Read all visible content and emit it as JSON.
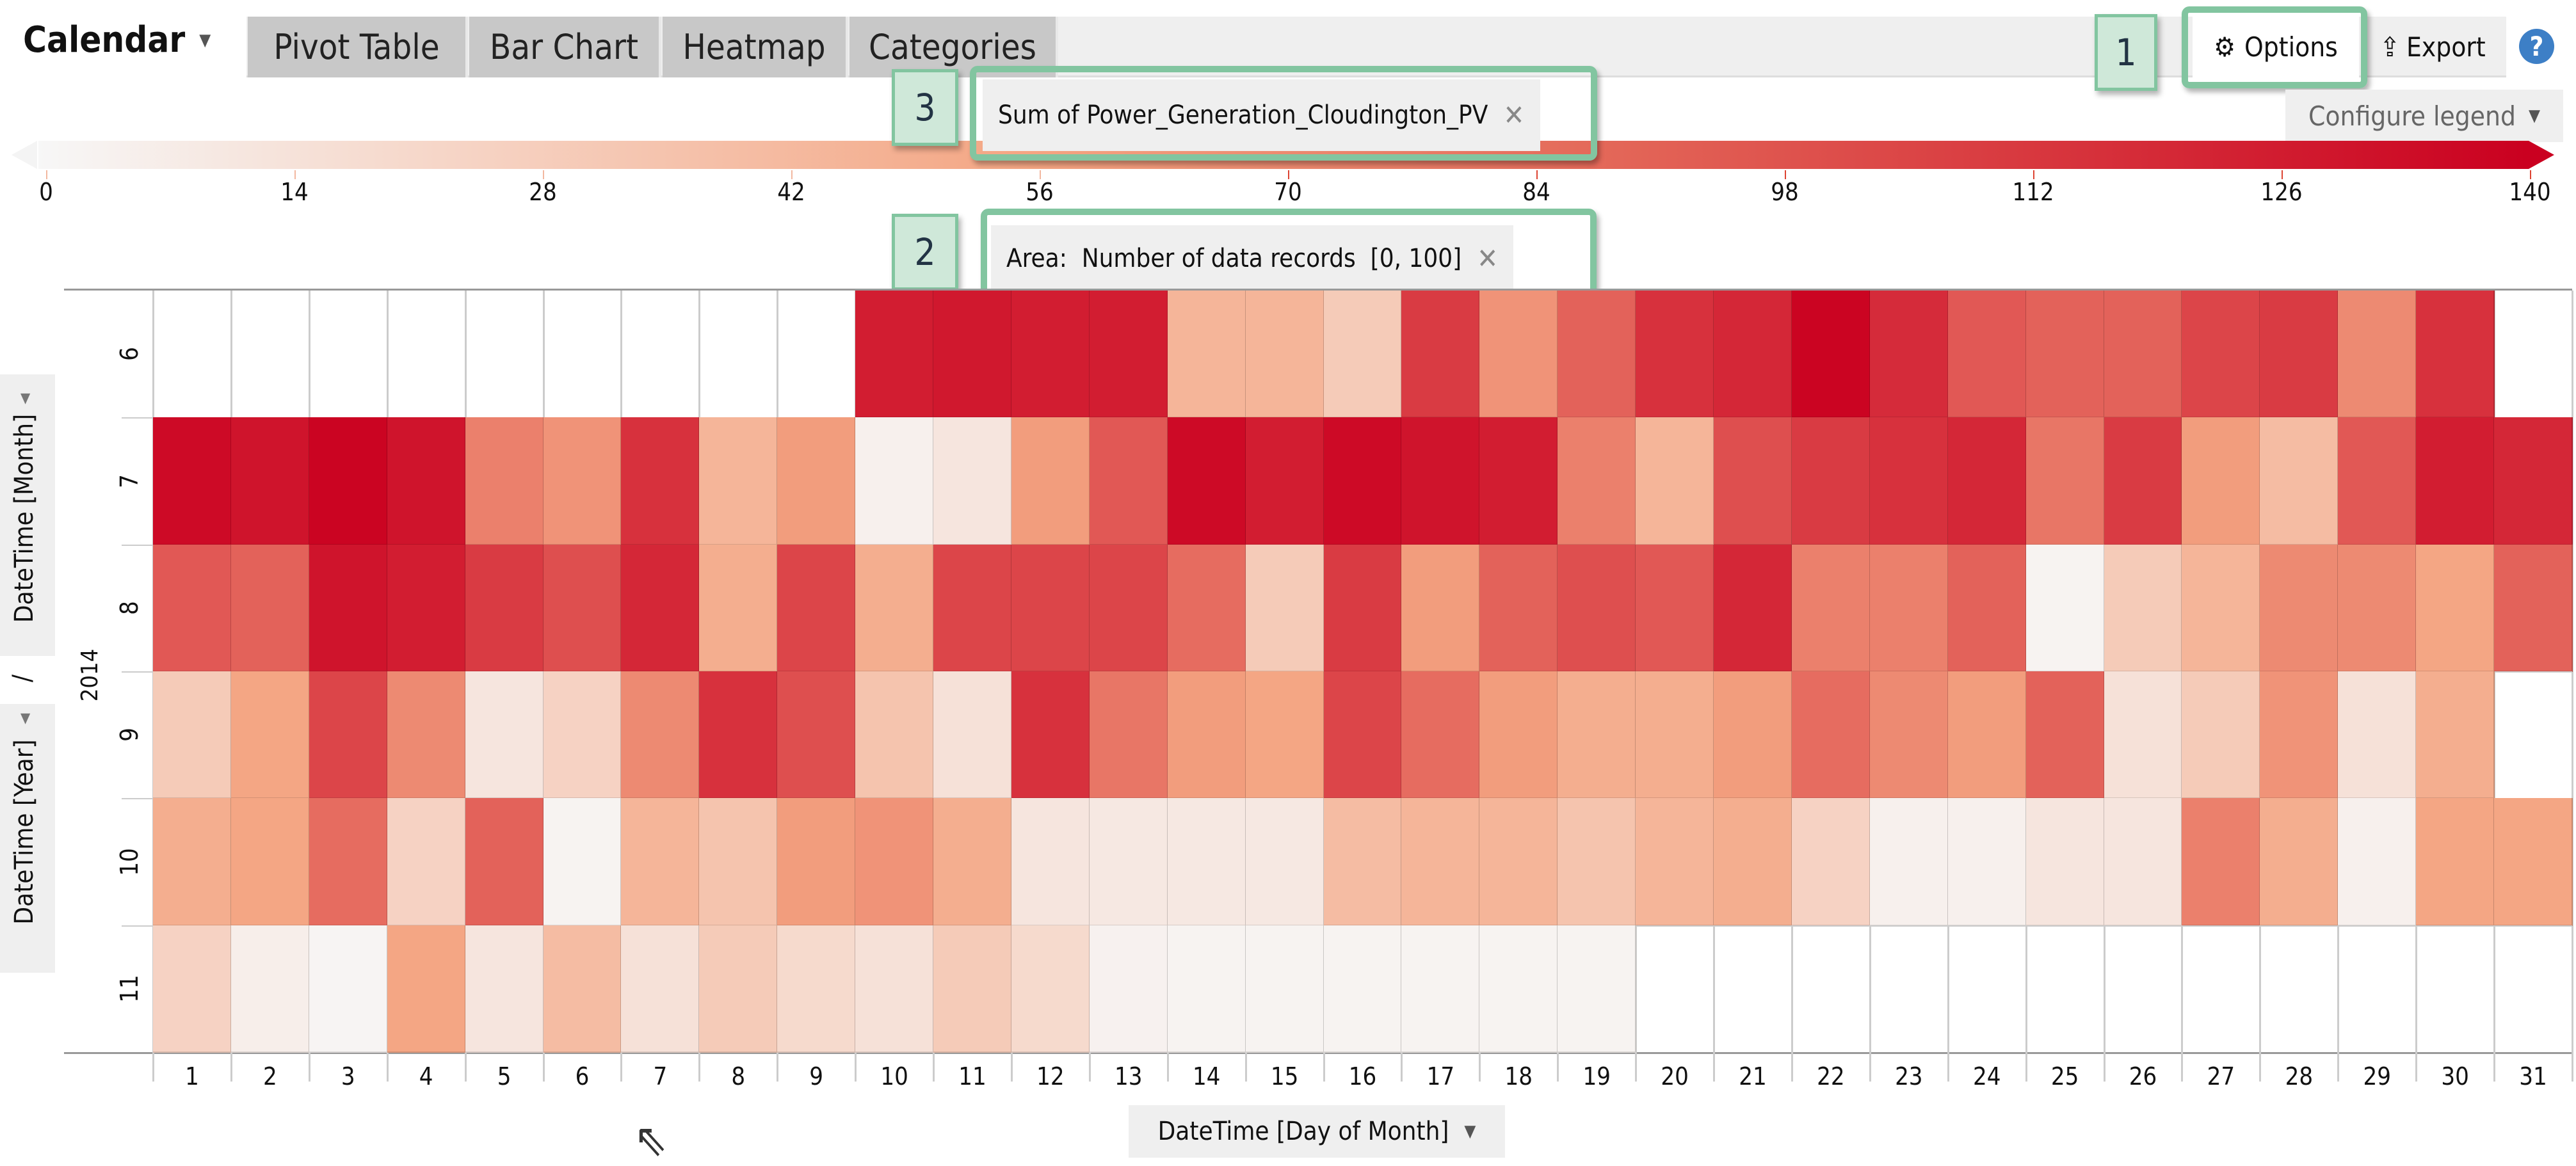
{
  "header": {
    "title": "Calendar",
    "tabs": [
      "Pivot Table",
      "Bar Chart",
      "Heatmap",
      "Categories"
    ],
    "options_label": "Options",
    "export_label": "Export",
    "help_label": "?"
  },
  "annotations": {
    "badge1": "1",
    "badge2": "2",
    "badge3": "3"
  },
  "legend": {
    "measure_pill": "Sum of Power_Generation_Cloudington_PV",
    "area_pill": "Area:  Number of data records  [0, 100]",
    "configure_label": "Configure legend",
    "ticks": [
      "0",
      "14",
      "28",
      "42",
      "56",
      "70",
      "84",
      "98",
      "112",
      "126",
      "140"
    ],
    "colors": {
      "low": "#f7f7f7",
      "mid": "#f4a582",
      "high": "#ca0020"
    }
  },
  "axes": {
    "year_label": "DateTime [Year]",
    "separator": "/",
    "month_label": "DateTime [Month]",
    "year_value": "2014",
    "x_title": "DateTime [Day of Month]"
  },
  "chart_data": {
    "type": "heatmap",
    "title": "Sum of Power_Generation_Cloudington_PV",
    "xlabel": "DateTime [Day of Month]",
    "ylabel": "DateTime [Year] / DateTime [Month]",
    "color_range": [
      0,
      140
    ],
    "x": [
      "1",
      "2",
      "3",
      "4",
      "5",
      "6",
      "7",
      "8",
      "9",
      "10",
      "11",
      "12",
      "13",
      "14",
      "15",
      "16",
      "17",
      "18",
      "19",
      "20",
      "21",
      "22",
      "23",
      "24",
      "25",
      "26",
      "27",
      "28",
      "29",
      "30",
      "31"
    ],
    "y": [
      "6",
      "7",
      "8",
      "9",
      "10",
      "11"
    ],
    "values": [
      [
        null,
        null,
        null,
        null,
        null,
        null,
        null,
        null,
        null,
        125,
        128,
        125,
        125,
        45,
        45,
        30,
        110,
        65,
        90,
        115,
        120,
        138,
        118,
        95,
        90,
        90,
        105,
        110,
        70,
        115,
        null
      ],
      [
        135,
        130,
        138,
        130,
        75,
        65,
        115,
        45,
        60,
        5,
        12,
        60,
        95,
        135,
        125,
        135,
        130,
        125,
        75,
        45,
        100,
        110,
        115,
        120,
        80,
        110,
        60,
        40,
        95,
        125,
        120
      ],
      [
        95,
        90,
        130,
        125,
        110,
        100,
        120,
        50,
        105,
        50,
        105,
        105,
        105,
        85,
        30,
        110,
        60,
        90,
        100,
        95,
        120,
        75,
        75,
        90,
        3,
        30,
        45,
        70,
        70,
        55,
        90
      ],
      [
        30,
        55,
        105,
        70,
        12,
        25,
        70,
        115,
        100,
        35,
        15,
        115,
        80,
        60,
        55,
        105,
        85,
        60,
        50,
        50,
        60,
        85,
        70,
        60,
        90,
        15,
        30,
        65,
        15,
        50,
        null
      ],
      [
        50,
        55,
        85,
        25,
        90,
        3,
        45,
        35,
        60,
        65,
        50,
        12,
        10,
        10,
        10,
        40,
        45,
        45,
        35,
        45,
        50,
        25,
        5,
        5,
        12,
        12,
        75,
        50,
        5,
        55,
        55
      ],
      [
        25,
        6,
        2,
        55,
        12,
        40,
        15,
        30,
        20,
        15,
        30,
        20,
        4,
        3,
        3,
        3,
        3,
        3,
        3,
        null,
        null,
        null,
        null,
        null,
        null,
        null,
        null,
        null,
        null,
        null,
        null
      ]
    ]
  }
}
